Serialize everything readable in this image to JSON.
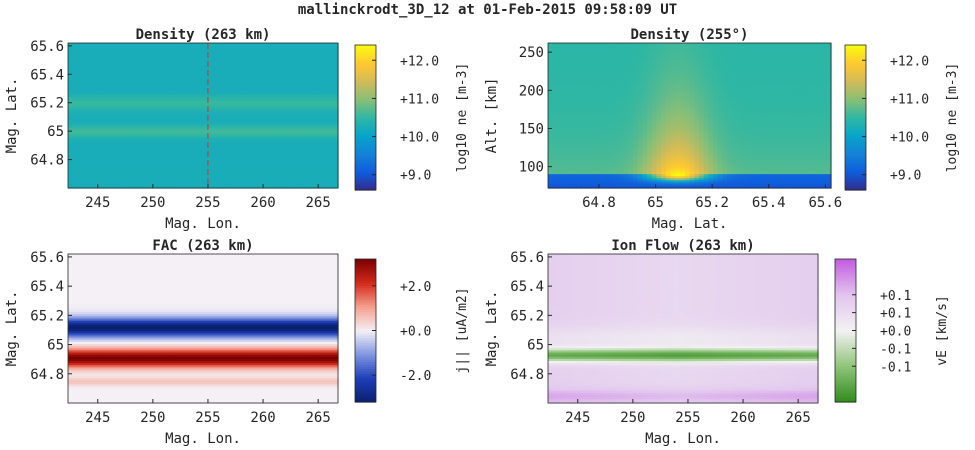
{
  "figure": {
    "title": "mallinckrodt_3D_12 at 01-Feb-2015 09:58:09 UT"
  },
  "colors": {
    "axis": "#262626",
    "parula": [
      "#352a87",
      "#0f5cdd",
      "#1481d6",
      "#06a4ca",
      "#2eb7a4",
      "#87bf77",
      "#d1bb59",
      "#fec832",
      "#f9fb0e"
    ],
    "red_blue": [
      "#0a1f6e",
      "#1d3fb8",
      "#7f95e0",
      "#f4f0f6",
      "#f5a08f",
      "#d42a1c",
      "#7a0000"
    ],
    "purple_green": [
      "#2f8a1c",
      "#8ec478",
      "#f2f2f2",
      "#e2c6ee",
      "#c35ce0"
    ]
  },
  "chart_data": [
    {
      "id": "density_263",
      "type": "heatmap",
      "title": "Density (263 km)",
      "xlabel": "Mag. Lon.",
      "ylabel": "Mag. Lat.",
      "xlim": [
        242.3,
        266.8
      ],
      "ylim": [
        64.6,
        65.62
      ],
      "xticks": [
        245,
        250,
        255,
        260,
        265
      ],
      "yticks": [
        64.8,
        65,
        65.2,
        65.4,
        65.6
      ],
      "ytick_labels": [
        "64.8",
        "65",
        "65.2",
        "65.4",
        "65.6"
      ],
      "profile": {
        "axis": "y",
        "base": 10.25,
        "bumps": [
          [
            65.2,
            0.3,
            0.035
          ],
          [
            65.0,
            0.35,
            0.03
          ]
        ]
      },
      "cut_line": {
        "x": 255,
        "color": "#d9302b"
      },
      "colorbar": {
        "label": "log10 ne [m-3]",
        "min": 8.6,
        "max": 12.4,
        "ticks": [
          9.0,
          10.0,
          11.0,
          12.0
        ],
        "tick_labels": [
          "+9.0",
          "+10.0",
          "+11.0",
          "+12.0"
        ]
      }
    },
    {
      "id": "density_255deg",
      "type": "heatmap",
      "title": "Density (255°)",
      "xlabel": "Mag. Lat.",
      "ylabel": "Alt. [km]",
      "xlim": [
        64.62,
        65.62
      ],
      "ylim": [
        72,
        262
      ],
      "xticks": [
        64.8,
        65,
        65.2,
        65.4,
        65.6
      ],
      "xtick_labels": [
        "64.8",
        "65",
        "65.2",
        "65.4",
        "65.6"
      ],
      "yticks": [
        100,
        150,
        200,
        250
      ],
      "ytick_labels": [
        "100",
        "150",
        "200",
        "250"
      ],
      "colorbar": {
        "label": "log10 ne [m-3]",
        "min": 8.6,
        "max": 12.4,
        "ticks": [
          9.0,
          10.0,
          11.0,
          12.0
        ],
        "tick_labels": [
          "+9.0",
          "+10.0",
          "+11.0",
          "+12.0"
        ]
      }
    },
    {
      "id": "fac_263",
      "type": "heatmap",
      "title": "FAC (263 km)",
      "xlabel": "Mag. Lon.",
      "ylabel": "Mag. Lat.",
      "xlim": [
        242.3,
        266.8
      ],
      "ylim": [
        64.6,
        65.62
      ],
      "xticks": [
        245,
        250,
        255,
        260,
        265
      ],
      "yticks": [
        64.8,
        65,
        65.2,
        65.4,
        65.6
      ],
      "ytick_labels": [
        "64.8",
        "65",
        "65.2",
        "65.4",
        "65.6"
      ],
      "profile": {
        "axis": "y",
        "base": 0,
        "bumps": [
          [
            65.12,
            -3.2,
            0.045
          ],
          [
            64.91,
            3.2,
            0.045
          ]
        ]
      },
      "colorbar": {
        "label": "j|| [uA/m2]",
        "min": -3.2,
        "max": 3.2,
        "ticks": [
          -2.0,
          0.0,
          2.0
        ],
        "tick_labels": [
          "-2.0",
          "+0.0",
          "+2.0"
        ]
      }
    },
    {
      "id": "ionflow_263",
      "type": "heatmap",
      "title": "Ion Flow (263 km)",
      "xlabel": "Mag. Lon.",
      "ylabel": "Mag. Lat.",
      "xlim": [
        242.3,
        266.8
      ],
      "ylim": [
        64.6,
        65.62
      ],
      "xticks": [
        245,
        250,
        255,
        260,
        265
      ],
      "yticks": [
        64.8,
        65,
        65.2,
        65.4,
        65.6
      ],
      "ytick_labels": [
        "64.8",
        "65",
        "65.2",
        "65.4",
        "65.6"
      ],
      "colorbar": {
        "label": "vE [km/s]",
        "min": -0.2,
        "max": 0.2,
        "ticks": [
          -0.1,
          -0.05,
          0.0,
          0.05,
          0.1
        ],
        "tick_labels": [
          "-0.1",
          "-0.1",
          "+0.0",
          "+0.1",
          "+0.1"
        ]
      }
    }
  ]
}
